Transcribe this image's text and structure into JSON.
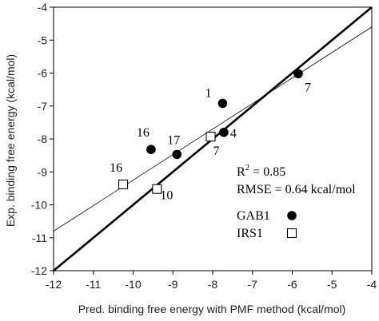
{
  "chart_data": {
    "type": "scatter",
    "title": "",
    "xlabel": "Pred. binding free energy with PMF method (kcal/mol)",
    "ylabel": "Exp. binding free energy (kcal/mol)",
    "xlim": [
      -12,
      -4
    ],
    "ylim": [
      -12,
      -4
    ],
    "xticks": [
      -12,
      -11,
      -10,
      -9,
      -8,
      -7,
      -6,
      -5,
      -4
    ],
    "yticks": [
      -12,
      -11,
      -10,
      -9,
      -8,
      -7,
      -6,
      -5,
      -4
    ],
    "grid": false,
    "legend_position": "bottom-right",
    "series": [
      {
        "name": "GAB1",
        "marker": "filled-circle",
        "color": "#000000",
        "points": [
          {
            "label": "1",
            "x": -7.75,
            "y": -6.92
          },
          {
            "label": "7",
            "x": -5.85,
            "y": -6.02
          },
          {
            "label": "4",
            "x": -7.72,
            "y": -7.8
          },
          {
            "label": "17",
            "x": -8.9,
            "y": -8.47
          },
          {
            "label": "16",
            "x": -9.55,
            "y": -8.32
          }
        ]
      },
      {
        "name": "IRS1",
        "marker": "open-square",
        "color": "#000000",
        "points": [
          {
            "label": "7",
            "x": -8.05,
            "y": -7.93
          },
          {
            "label": "16",
            "x": -10.25,
            "y": -9.38
          },
          {
            "label": "10",
            "x": -9.4,
            "y": -9.52
          }
        ]
      }
    ],
    "lines": [
      {
        "kind": "identity",
        "x": [
          -12,
          -4
        ],
        "y": [
          -12,
          -4
        ],
        "color": "#000000",
        "weight": "thick"
      },
      {
        "kind": "regression",
        "x": [
          -12,
          -4
        ],
        "y": [
          -10.8,
          -4.6
        ],
        "color": "#000000",
        "weight": "thin"
      }
    ],
    "annotations": {
      "r2_prefix": "R",
      "r2_sup": "2",
      "r2_suffix": " = 0.85",
      "rmse": "RMSE = 0.64 kcal/mol"
    }
  }
}
